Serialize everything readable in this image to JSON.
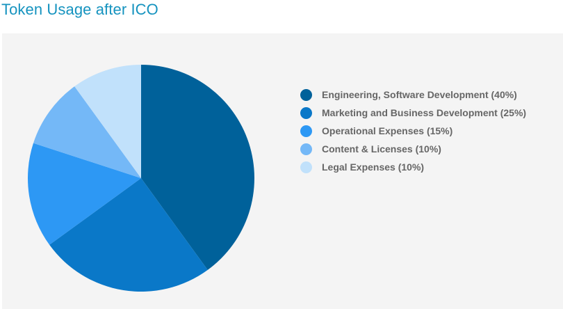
{
  "page": {
    "title": "Token Usage after ICO"
  },
  "chart_data": {
    "type": "pie",
    "title": "",
    "legend_placement": "right",
    "slices": [
      {
        "label": "Engineering, Software Development (40%)",
        "value": 40,
        "color": "#00619a"
      },
      {
        "label": "Marketing and Business Development (25%)",
        "value": 25,
        "color": "#0a78c8"
      },
      {
        "label": "Operational Expenses (15%)",
        "value": 15,
        "color": "#2d98f4"
      },
      {
        "label": "Content & Licenses (10%)",
        "value": 10,
        "color": "#74b8f7"
      },
      {
        "label": "Legal Expenses (10%)",
        "value": 10,
        "color": "#c1e1fb"
      }
    ]
  }
}
